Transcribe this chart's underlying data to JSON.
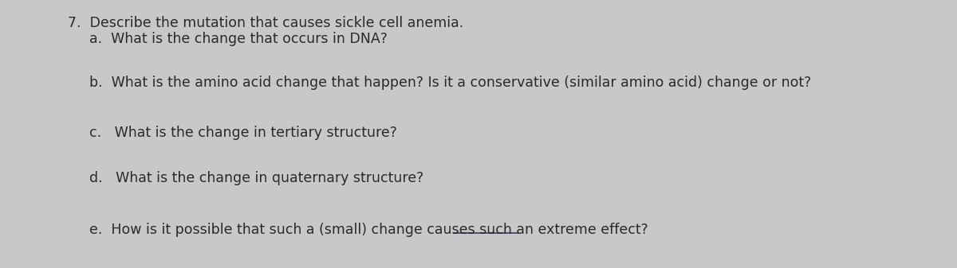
{
  "background_color": "#c8c8c8",
  "text_color": "#2a2a2a",
  "title_line1_num": "7.",
  "title_line1_text": "  Describe the mutation that causes sickle cell anemia.",
  "title_line2_letter": "a.",
  "title_line2_text": "  What is the change that occurs in DNA?",
  "line_b_letter": "b.",
  "line_b_text": "  What is the amino acid change that happen? Is it a conservative (similar amino acid) change or not?",
  "line_c_letter": "c.",
  "line_c_text": "   What is the change in tertiary structure?",
  "line_d_letter": "d.",
  "line_d_text": "   What is the change in quaternary structure?",
  "line_e_letter": "e.",
  "line_e_before": "  How is it possible that such a (small) ",
  "line_e_underline": "change",
  "line_e_after": " causes such an extreme effect?",
  "font_size": 12.5,
  "underline_color": "#3a3a6a"
}
